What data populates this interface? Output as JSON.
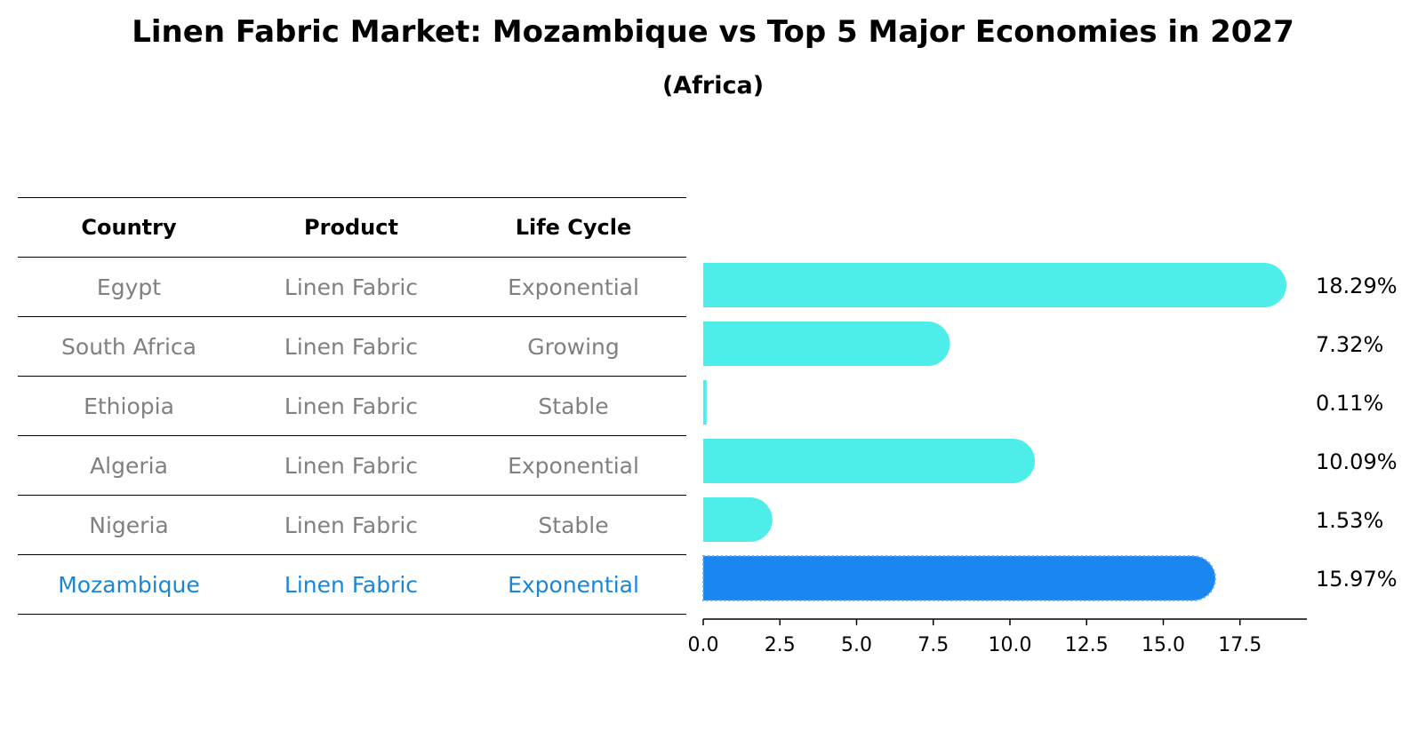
{
  "title": "Linen Fabric Market: Mozambique vs Top 5 Major Economies in 2027",
  "subtitle": "(Africa)",
  "table": {
    "headers": [
      "Country",
      "Product",
      "Life Cycle"
    ],
    "rows": [
      {
        "country": "Egypt",
        "product": "Linen Fabric",
        "life_cycle": "Exponential"
      },
      {
        "country": "South Africa",
        "product": "Linen Fabric",
        "life_cycle": "Growing"
      },
      {
        "country": "Ethiopia",
        "product": "Linen Fabric",
        "life_cycle": "Stable"
      },
      {
        "country": "Algeria",
        "product": "Linen Fabric",
        "life_cycle": "Exponential"
      },
      {
        "country": "Nigeria",
        "product": "Linen Fabric",
        "life_cycle": "Stable"
      },
      {
        "country": "Mozambique",
        "product": "Linen Fabric",
        "life_cycle": "Exponential"
      }
    ]
  },
  "chart_data": {
    "type": "bar",
    "orientation": "horizontal",
    "categories": [
      "Egypt",
      "South Africa",
      "Ethiopia",
      "Algeria",
      "Nigeria",
      "Mozambique"
    ],
    "values": [
      18.29,
      7.32,
      0.11,
      10.09,
      1.53,
      15.97
    ],
    "value_labels": [
      "18.29%",
      "7.32%",
      "0.11%",
      "10.09%",
      "1.53%",
      "15.97%"
    ],
    "highlight": "Mozambique",
    "xlim": [
      0,
      19.2
    ],
    "xticks": [
      "0.0",
      "2.5",
      "5.0",
      "7.5",
      "10.0",
      "12.5",
      "15.0",
      "17.5"
    ],
    "xtick_values": [
      0,
      2.5,
      5,
      7.5,
      10,
      12.5,
      15,
      17.5
    ],
    "colors": {
      "default": "#4deeea",
      "highlight": "#1a86f0"
    },
    "grid": false,
    "legend": false
  }
}
